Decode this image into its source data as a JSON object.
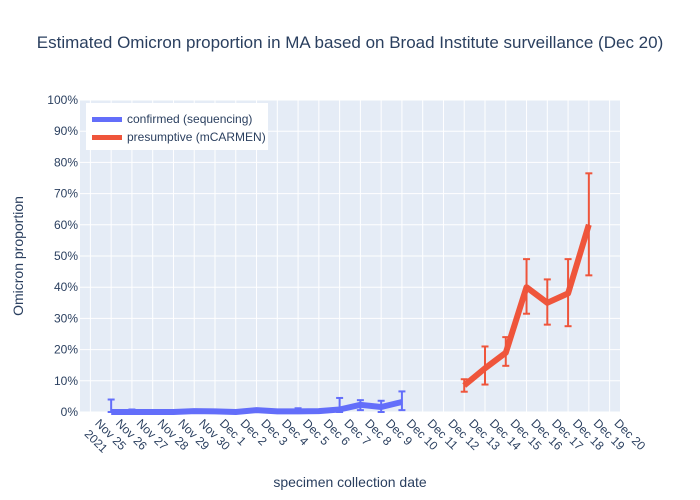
{
  "chart_data": {
    "type": "line",
    "title": "Estimated Omicron proportion in MA based on Broad Institute surveillance (Dec 20)",
    "xlabel": "specimen collection date",
    "ylabel": "Omicron proportion",
    "x_ticks": [
      "Nov 25\n2021",
      "Nov 26",
      "Nov 27",
      "Nov 28",
      "Nov 29",
      "Nov 30",
      "Dec 1",
      "Dec 2",
      "Dec 3",
      "Dec 4",
      "Dec 5",
      "Dec 6",
      "Dec 7",
      "Dec 8",
      "Dec 9",
      "Dec 10",
      "Dec 11",
      "Dec 12",
      "Dec 13",
      "Dec 14",
      "Dec 15",
      "Dec 16",
      "Dec 17",
      "Dec 18",
      "Dec 19",
      "Dec 20"
    ],
    "y_ticks": [
      "0%",
      "10%",
      "20%",
      "30%",
      "40%",
      "50%",
      "60%",
      "70%",
      "80%",
      "90%",
      "100%"
    ],
    "ylim": [
      0,
      100
    ],
    "series": [
      {
        "name": "confirmed (sequencing)",
        "color": "#636efa",
        "x": [
          1,
          2,
          3,
          4,
          5,
          6,
          7,
          8,
          9,
          10,
          11,
          12,
          13,
          14,
          15
        ],
        "values": [
          0.0,
          0.0,
          0.0,
          0.0,
          0.3,
          0.2,
          0.0,
          0.6,
          0.2,
          0.2,
          0.3,
          0.8,
          2.3,
          1.6,
          3.2
        ],
        "err_upper": [
          4.0,
          0.8,
          0.5,
          0.3,
          0.5,
          0.4,
          0.4,
          0.8,
          0.3,
          1.2,
          0.4,
          4.5,
          3.8,
          3.6,
          6.6
        ],
        "err_lower": [
          0.0,
          0.0,
          0.0,
          0.0,
          0.0,
          0.0,
          0.0,
          0.2,
          0.0,
          0.0,
          0.0,
          0.0,
          0.6,
          0.0,
          0.6
        ]
      },
      {
        "name": "presumptive (mCARMEN)",
        "color": "#ef553b",
        "x": [
          18,
          19,
          20,
          21,
          22,
          23,
          24
        ],
        "values": [
          8.5,
          14.0,
          19.0,
          40.0,
          35.0,
          38.0,
          60.0
        ],
        "err_upper": [
          10.5,
          21.0,
          24.0,
          49.0,
          42.5,
          49.0,
          76.5
        ],
        "err_lower": [
          6.5,
          8.8,
          14.8,
          31.5,
          28.0,
          27.5,
          43.8
        ]
      }
    ]
  },
  "legend": {
    "items": [
      {
        "label": "confirmed (sequencing)",
        "color": "#636efa"
      },
      {
        "label": "presumptive (mCARMEN)",
        "color": "#ef553b"
      }
    ]
  }
}
